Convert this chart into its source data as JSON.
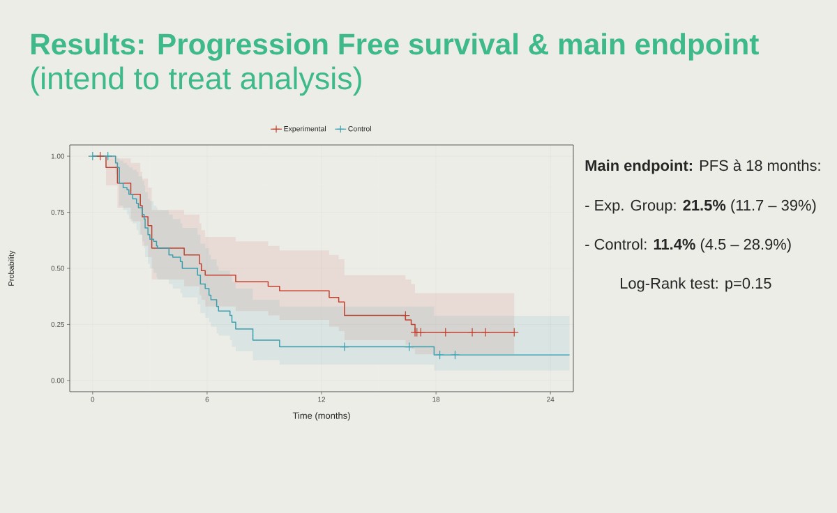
{
  "chart_data": {
    "type": "step",
    "title": "Results: Progression Free survival & main endpoint",
    "subtitle": "(intend to treat analysis)",
    "xlabel": "Time (months)",
    "ylabel": "Probability",
    "annotations": [
      "**Main endpoint:** PFS à 18 months:",
      "- Exp. Group: **21.5%** (11.7 – 39%)",
      "- Control: **11.4%** (4.5 – 28.9%)",
      "Log-Rank test: p=0.15"
    ],
    "xlim": [
      -1.2,
      25.2
    ],
    "ylim": [
      -0.05,
      1.05
    ],
    "xticks": [
      0,
      6,
      12,
      18,
      24
    ],
    "yticks": [
      {
        "value": 0,
        "label": "0.00"
      },
      {
        "value": 0.25,
        "label": "0.25"
      },
      {
        "value": 0.5,
        "label": "0.50"
      },
      {
        "value": 0.75,
        "label": "0.75"
      },
      {
        "value": 1,
        "label": "1.00"
      }
    ],
    "grid": true,
    "legend": "top",
    "series": [
      {
        "name": "Experimental",
        "color": "#c0412f",
        "x": [
          0,
          0.7,
          1.3,
          2.0,
          2.5,
          2.6,
          2.9,
          3.1,
          4.8,
          5.6,
          5.7,
          5.9,
          7.5,
          9.2,
          9.8,
          12.4,
          12.9,
          13.2,
          16.4,
          16.7,
          16.9,
          22.1
        ],
        "values": [
          1.0,
          0.95,
          0.88,
          0.83,
          0.78,
          0.73,
          0.69,
          0.59,
          0.56,
          0.52,
          0.49,
          0.47,
          0.44,
          0.42,
          0.4,
          0.37,
          0.35,
          0.29,
          0.27,
          0.25,
          0.215,
          0.215
        ],
        "lower": [
          1.0,
          0.87,
          0.77,
          0.71,
          0.65,
          0.6,
          0.55,
          0.45,
          0.42,
          0.38,
          0.36,
          0.33,
          0.31,
          0.29,
          0.27,
          0.24,
          0.22,
          0.18,
          0.16,
          0.14,
          0.117,
          0.117
        ],
        "upper": [
          1.0,
          1.0,
          0.99,
          0.97,
          0.93,
          0.9,
          0.86,
          0.76,
          0.74,
          0.7,
          0.67,
          0.64,
          0.62,
          0.6,
          0.58,
          0.56,
          0.54,
          0.47,
          0.45,
          0.43,
          0.39,
          0.39
        ]
      },
      {
        "name": "Control",
        "color": "#3a9fae",
        "x": [
          0,
          1.2,
          1.3,
          1.4,
          1.6,
          1.8,
          1.9,
          2.1,
          2.3,
          2.4,
          2.6,
          2.7,
          2.75,
          2.9,
          3.0,
          3.2,
          3.35,
          3.4,
          4.0,
          4.2,
          4.6,
          4.7,
          5.5,
          5.65,
          5.9,
          6.1,
          6.2,
          6.5,
          6.6,
          7.2,
          7.3,
          7.5,
          8.4,
          9.8,
          17.9,
          25
        ],
        "values": [
          1.0,
          0.97,
          0.95,
          0.88,
          0.86,
          0.85,
          0.83,
          0.81,
          0.79,
          0.77,
          0.74,
          0.72,
          0.68,
          0.65,
          0.63,
          0.62,
          0.6,
          0.59,
          0.56,
          0.55,
          0.53,
          0.5,
          0.47,
          0.43,
          0.41,
          0.38,
          0.36,
          0.33,
          0.31,
          0.29,
          0.26,
          0.23,
          0.18,
          0.15,
          0.114,
          0.114
        ],
        "lower": [
          1.0,
          0.92,
          0.88,
          0.78,
          0.76,
          0.74,
          0.72,
          0.7,
          0.67,
          0.65,
          0.62,
          0.59,
          0.55,
          0.52,
          0.5,
          0.48,
          0.46,
          0.45,
          0.43,
          0.41,
          0.39,
          0.37,
          0.34,
          0.3,
          0.28,
          0.26,
          0.24,
          0.21,
          0.2,
          0.18,
          0.15,
          0.13,
          0.09,
          0.07,
          0.045,
          0.045
        ],
        "upper": [
          1.0,
          0.99,
          0.99,
          0.98,
          0.97,
          0.96,
          0.95,
          0.94,
          0.93,
          0.91,
          0.89,
          0.87,
          0.84,
          0.81,
          0.8,
          0.78,
          0.77,
          0.76,
          0.74,
          0.72,
          0.7,
          0.68,
          0.65,
          0.61,
          0.59,
          0.56,
          0.54,
          0.51,
          0.49,
          0.47,
          0.44,
          0.41,
          0.36,
          0.33,
          0.289,
          0.289
        ]
      },
      {
        "type": "scatter",
        "color": "#c0412f",
        "marker": "cross",
        "x": [
          0.4,
          16.4,
          16.9,
          17.0,
          17.2,
          18.5,
          19.9,
          20.6,
          22.1
        ],
        "values": [
          1.0,
          0.29,
          0.215,
          0.215,
          0.215,
          0.215,
          0.215,
          0.215,
          0.215
        ]
      },
      {
        "type": "scatter",
        "color": "#3a9fae",
        "marker": "cross",
        "x": [
          0,
          0.8,
          13.2,
          16.6,
          18.2,
          19.0
        ],
        "values": [
          1.0,
          1.0,
          0.15,
          0.15,
          0.114,
          0.114
        ]
      }
    ]
  }
}
